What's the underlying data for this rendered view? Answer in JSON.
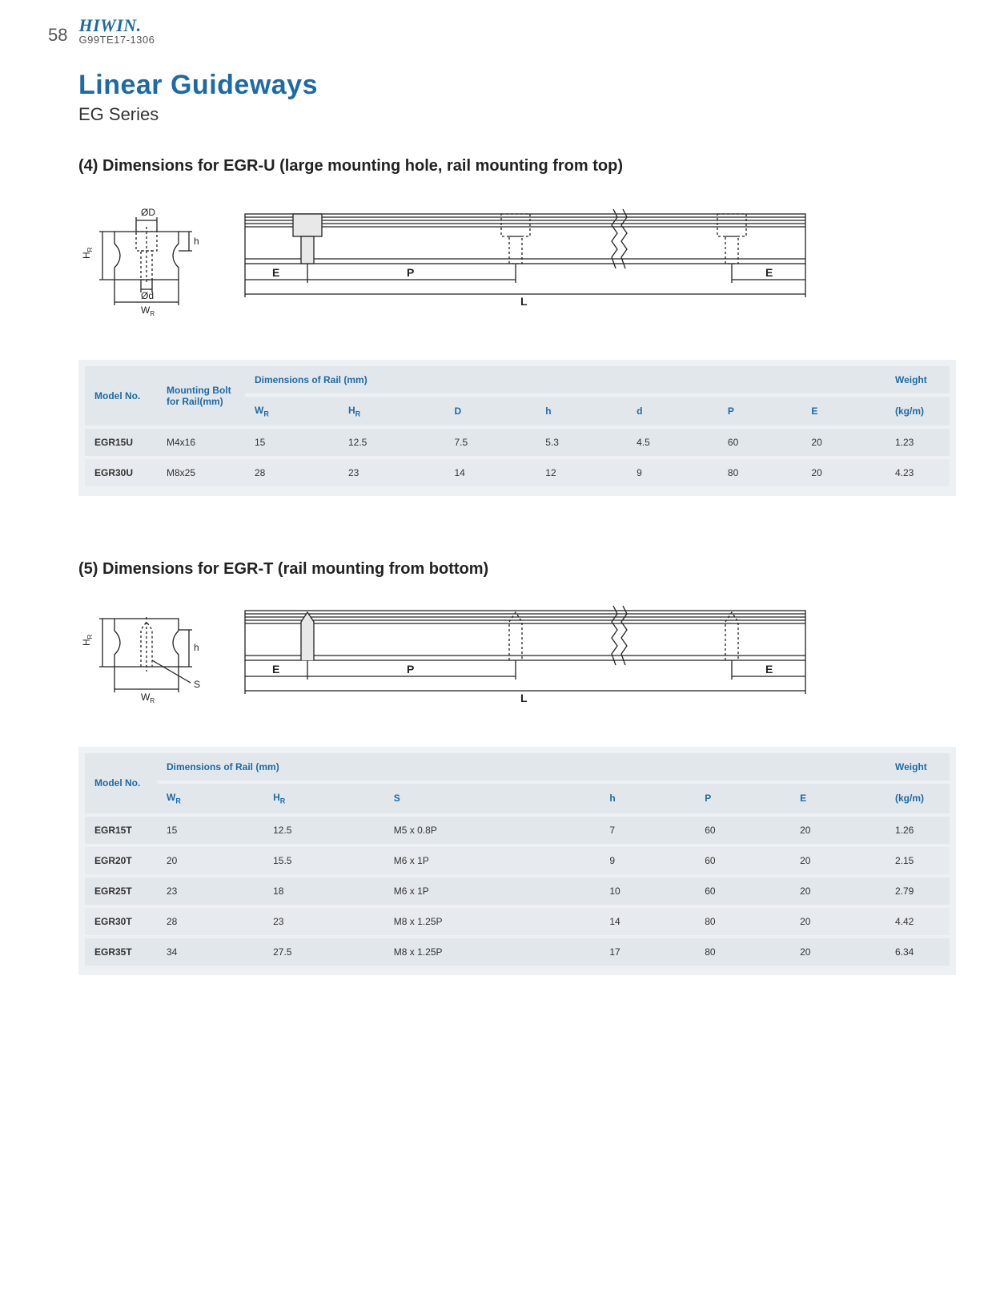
{
  "page": {
    "number": "58",
    "brand": "HIWIN.",
    "doc_id": "G99TE17-1306",
    "title": "Linear Guideways",
    "subtitle": "EG Series"
  },
  "section4": {
    "heading": "(4) Dimensions for EGR-U (large mounting hole, rail mounting from top)",
    "diagram": {
      "cross_labels": {
        "OD": "ØD",
        "Od": "Ød",
        "WR": "W",
        "WR_sub": "R",
        "HR": "H",
        "HR_sub": "R",
        "h": "h"
      },
      "side_labels": {
        "E": "E",
        "P": "P",
        "L": "L",
        "E2": "E"
      },
      "stroke": "#222222",
      "fill": "#ffffff",
      "dash_fill": "#f7f7f7"
    },
    "table": {
      "head_model": "Model No.",
      "head_bolt": "Mounting Bolt for Rail(mm)",
      "head_dims": "Dimensions of Rail (mm)",
      "head_weight": "Weight",
      "cols": [
        "W",
        "H",
        "D",
        "h",
        "d",
        "P",
        "E"
      ],
      "col_subs": [
        "R",
        "R",
        "",
        "",
        "",
        "",
        ""
      ],
      "weight_unit": "(kg/m)",
      "rows": [
        {
          "model": "EGR15U",
          "bolt": "M4x16",
          "vals": [
            "15",
            "12.5",
            "7.5",
            "5.3",
            "4.5",
            "60",
            "20"
          ],
          "weight": "1.23"
        },
        {
          "model": "EGR30U",
          "bolt": "M8x25",
          "vals": [
            "28",
            "23",
            "14",
            "12",
            "9",
            "80",
            "20"
          ],
          "weight": "4.23"
        }
      ]
    }
  },
  "section5": {
    "heading": "(5) Dimensions for EGR-T (rail mounting from bottom)",
    "diagram": {
      "cross_labels": {
        "WR": "W",
        "WR_sub": "R",
        "HR": "H",
        "HR_sub": "R",
        "h": "h",
        "S": "S"
      },
      "side_labels": {
        "E": "E",
        "P": "P",
        "L": "L",
        "E2": "E"
      },
      "stroke": "#222222"
    },
    "table": {
      "head_model": "Model No.",
      "head_dims": "Dimensions of Rail (mm)",
      "head_weight": "Weight",
      "cols": [
        "W",
        "H",
        "S",
        "h",
        "P",
        "E"
      ],
      "col_subs": [
        "R",
        "R",
        "",
        "",
        "",
        ""
      ],
      "weight_unit": "(kg/m)",
      "rows": [
        {
          "model": "EGR15T",
          "vals": [
            "15",
            "12.5",
            "M5 x 0.8P",
            "7",
            "60",
            "20"
          ],
          "weight": "1.26"
        },
        {
          "model": "EGR20T",
          "vals": [
            "20",
            "15.5",
            "M6 x 1P",
            "9",
            "60",
            "20"
          ],
          "weight": "2.15"
        },
        {
          "model": "EGR25T",
          "vals": [
            "23",
            "18",
            "M6 x 1P",
            "10",
            "60",
            "20"
          ],
          "weight": "2.79"
        },
        {
          "model": "EGR30T",
          "vals": [
            "28",
            "23",
            "M8 x 1.25P",
            "14",
            "80",
            "20"
          ],
          "weight": "4.42"
        },
        {
          "model": "EGR35T",
          "vals": [
            "34",
            "27.5",
            "M8 x 1.25P",
            "17",
            "80",
            "20"
          ],
          "weight": "6.34"
        }
      ]
    }
  }
}
